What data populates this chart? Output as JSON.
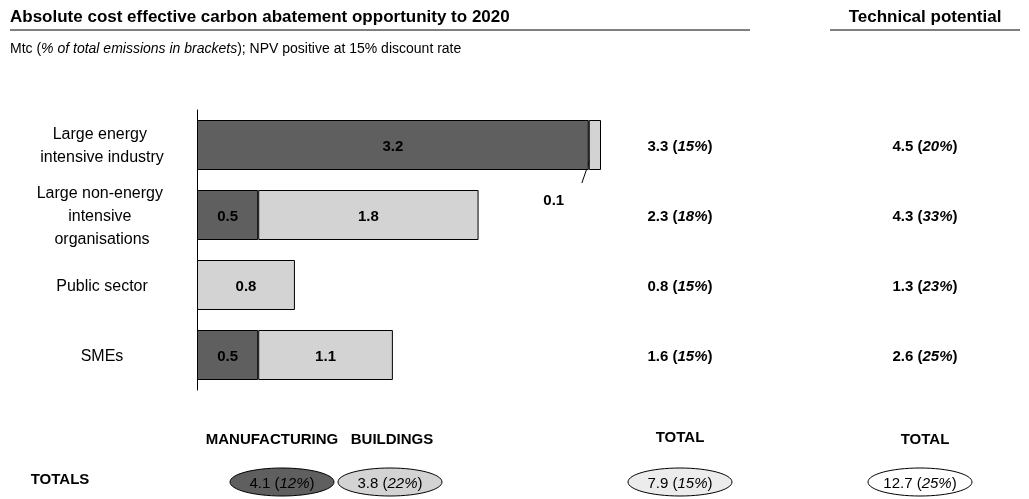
{
  "chart_data": {
    "type": "bar",
    "orientation": "horizontal",
    "stacked": true,
    "title": "Absolute cost effective carbon abatement opportunity to 2020",
    "subtitle": "Mtc (% of total emissions in brackets); NPV positive at 15% discount rate",
    "categories": [
      "Large energy intensive industry",
      "Large non-energy intensive organisations",
      "Public sector",
      "SMEs"
    ],
    "series": [
      {
        "color": "#5f5f5f",
        "values": [
          3.2,
          0.5,
          null,
          0.5
        ]
      },
      {
        "color": "#d3d3d3",
        "values": [
          0.1,
          1.8,
          0.8,
          1.1
        ]
      }
    ],
    "xlim": [
      0,
      3.3
    ],
    "data_labels": true,
    "annotations": [
      "Technical potential",
      "4.5 (20%)",
      "4.3 (33%)",
      "1.3 (23%)",
      "2.6 (25%)",
      "MANUFACTURING",
      "BUILDINGS",
      "TOTAL",
      "TOTAL",
      "TOTALS",
      "4.1 (12%)",
      "3.8 (22%)",
      "7.9 (15%)",
      "12.7 (25%)",
      "3.3 (15%)",
      "2.3 (18%)",
      "0.8 (15%)",
      "1.6 (15%)"
    ]
  }
}
